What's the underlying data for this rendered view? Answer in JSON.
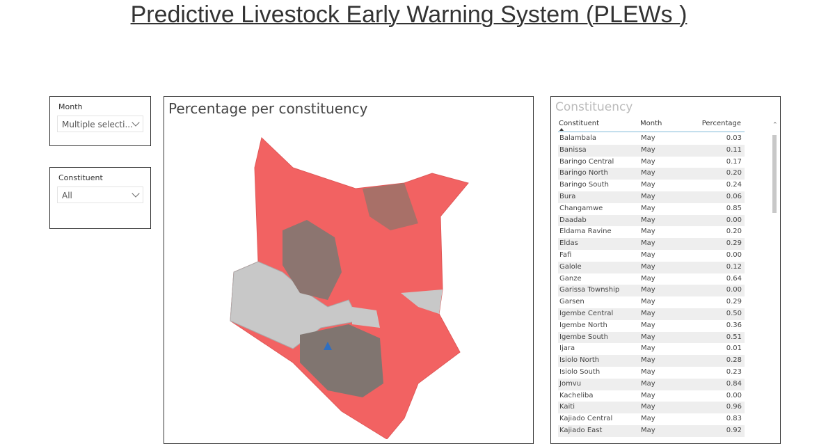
{
  "header": {
    "title": "Predictive Livestock Early Warning System (PLEWs )"
  },
  "slicers": [
    {
      "label": "Month",
      "value": "Multiple selecti..."
    },
    {
      "label": "Constituent",
      "value": "All"
    }
  ],
  "map": {
    "title": "Percentage per constituency"
  },
  "table": {
    "title": "Constituency",
    "columns": [
      "Constituent",
      "Month",
      "Percentage"
    ],
    "rows": [
      [
        "Balambala",
        "May",
        "0.03"
      ],
      [
        "Banissa",
        "May",
        "0.11"
      ],
      [
        "Baringo Central",
        "May",
        "0.17"
      ],
      [
        "Baringo North",
        "May",
        "0.20"
      ],
      [
        "Baringo South",
        "May",
        "0.24"
      ],
      [
        "Bura",
        "May",
        "0.06"
      ],
      [
        "Changamwe",
        "May",
        "0.85"
      ],
      [
        "Daadab",
        "May",
        "0.00"
      ],
      [
        "Eldama Ravine",
        "May",
        "0.20"
      ],
      [
        "Eldas",
        "May",
        "0.29"
      ],
      [
        "Fafi",
        "May",
        "0.00"
      ],
      [
        "Galole",
        "May",
        "0.12"
      ],
      [
        "Ganze",
        "May",
        "0.64"
      ],
      [
        "Garissa Township",
        "May",
        "0.00"
      ],
      [
        "Garsen",
        "May",
        "0.29"
      ],
      [
        "Igembe Central",
        "May",
        "0.50"
      ],
      [
        "Igembe North",
        "May",
        "0.36"
      ],
      [
        "Igembe South",
        "May",
        "0.51"
      ],
      [
        "Ijara",
        "May",
        "0.01"
      ],
      [
        "Isiolo North",
        "May",
        "0.28"
      ],
      [
        "Isiolo South",
        "May",
        "0.23"
      ],
      [
        "Jomvu",
        "May",
        "0.84"
      ],
      [
        "Kacheliba",
        "May",
        "0.00"
      ],
      [
        "Kaiti",
        "May",
        "0.96"
      ],
      [
        "Kajiado Central",
        "May",
        "0.83"
      ],
      [
        "Kajiado East",
        "May",
        "0.92"
      ]
    ]
  }
}
